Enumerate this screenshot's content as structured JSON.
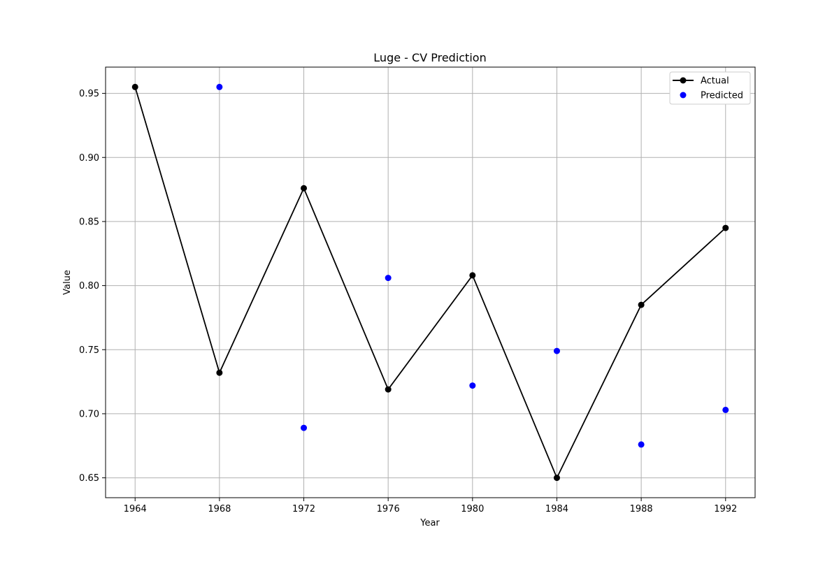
{
  "chart_data": {
    "type": "line",
    "title": "Luge - CV Prediction",
    "xlabel": "Year",
    "ylabel": "Value",
    "x": [
      1964,
      1968,
      1972,
      1976,
      1980,
      1984,
      1988,
      1992
    ],
    "xlim": [
      1962.6,
      1993.4
    ],
    "ylim": [
      0.6345,
      0.9705
    ],
    "xticks": [
      1964,
      1968,
      1972,
      1976,
      1980,
      1984,
      1988,
      1992
    ],
    "yticks": [
      0.65,
      0.7,
      0.75,
      0.8,
      0.85,
      0.9,
      0.95
    ],
    "ytick_labels": [
      "0.65",
      "0.70",
      "0.75",
      "0.80",
      "0.85",
      "0.90",
      "0.95"
    ],
    "grid": true,
    "legend_position": "top-right",
    "series": [
      {
        "name": "Actual",
        "kind": "line-marker",
        "color": "#000000",
        "values": [
          0.955,
          0.732,
          0.876,
          0.719,
          0.808,
          0.65,
          0.785,
          0.845
        ]
      },
      {
        "name": "Predicted",
        "kind": "scatter",
        "color": "#0000ff",
        "values": [
          null,
          0.955,
          0.689,
          0.806,
          0.722,
          0.749,
          0.676,
          0.703
        ]
      }
    ]
  }
}
